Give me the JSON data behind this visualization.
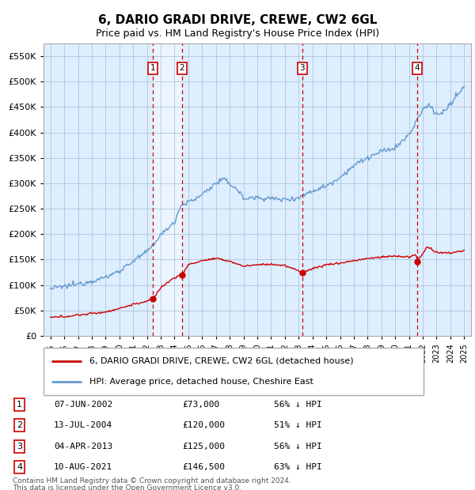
{
  "title": "6, DARIO GRADI DRIVE, CREWE, CW2 6GL",
  "subtitle": "Price paid vs. HM Land Registry's House Price Index (HPI)",
  "legend_line1": "6, DARIO GRADI DRIVE, CREWE, CW2 6GL (detached house)",
  "legend_line2": "HPI: Average price, detached house, Cheshire East",
  "footer1": "Contains HM Land Registry data © Crown copyright and database right 2024.",
  "footer2": "This data is licensed under the Open Government Licence v3.0.",
  "transactions": [
    {
      "num": 1,
      "date": "07-JUN-2002",
      "price": 73000,
      "pct": "56% ↓ HPI",
      "year_x": 2002.44
    },
    {
      "num": 2,
      "date": "13-JUL-2004",
      "price": 120000,
      "pct": "51% ↓ HPI",
      "year_x": 2004.54
    },
    {
      "num": 3,
      "date": "04-APR-2013",
      "price": 125000,
      "pct": "56% ↓ HPI",
      "year_x": 2013.26
    },
    {
      "num": 4,
      "date": "10-AUG-2021",
      "price": 146500,
      "pct": "63% ↓ HPI",
      "year_x": 2021.61
    }
  ],
  "red_color": "#cc0000",
  "blue_color": "#6699cc",
  "chart_bg": "#ddeeff",
  "shade_color": "#c8dcf0",
  "vline_color": "#cc0000",
  "grid_color": "#b0c4d8",
  "bg_color": "#ffffff",
  "ylim": [
    0,
    575000
  ],
  "xlim_start": 1994.5,
  "xlim_end": 2025.5,
  "hpi_anchors_x": [
    1995,
    1996,
    1997,
    1998,
    1999,
    2000,
    2001,
    2002,
    2003,
    2004,
    2004.5,
    2005.5,
    2007,
    2007.5,
    2008.5,
    2009,
    2010,
    2011,
    2012,
    2013,
    2014,
    2015,
    2016,
    2017,
    2018,
    2019,
    2020,
    2021,
    2021.5,
    2022,
    2022.5,
    2023,
    2023.5,
    2024,
    2025
  ],
  "hpi_anchors_y": [
    93000,
    97000,
    102000,
    108000,
    115000,
    128000,
    147000,
    165000,
    198000,
    225000,
    258000,
    268000,
    300000,
    308000,
    290000,
    270000,
    272000,
    270000,
    268000,
    272000,
    285000,
    295000,
    312000,
    335000,
    350000,
    362000,
    370000,
    395000,
    420000,
    445000,
    455000,
    435000,
    440000,
    455000,
    490000
  ],
  "price_anchors_x": [
    1995,
    1996,
    1997,
    1998,
    1999,
    2000,
    2001,
    2002,
    2002.44,
    2003,
    2004,
    2004.54,
    2005,
    2006,
    2007,
    2008,
    2009,
    2010,
    2011,
    2012,
    2013,
    2013.26,
    2014,
    2015,
    2016,
    2017,
    2018,
    2019,
    2020,
    2021,
    2021.5,
    2021.61,
    2022,
    2022.3,
    2022.8,
    2023,
    2024,
    2025
  ],
  "price_anchors_y": [
    36000,
    38000,
    41000,
    44000,
    47000,
    54000,
    62000,
    68000,
    73000,
    95000,
    115000,
    120000,
    140000,
    148000,
    152000,
    147000,
    137000,
    140000,
    141000,
    138000,
    128000,
    125000,
    132000,
    140000,
    143000,
    148000,
    152000,
    155000,
    157000,
    155000,
    160000,
    146500,
    162000,
    175000,
    168000,
    163000,
    163000,
    168000
  ]
}
